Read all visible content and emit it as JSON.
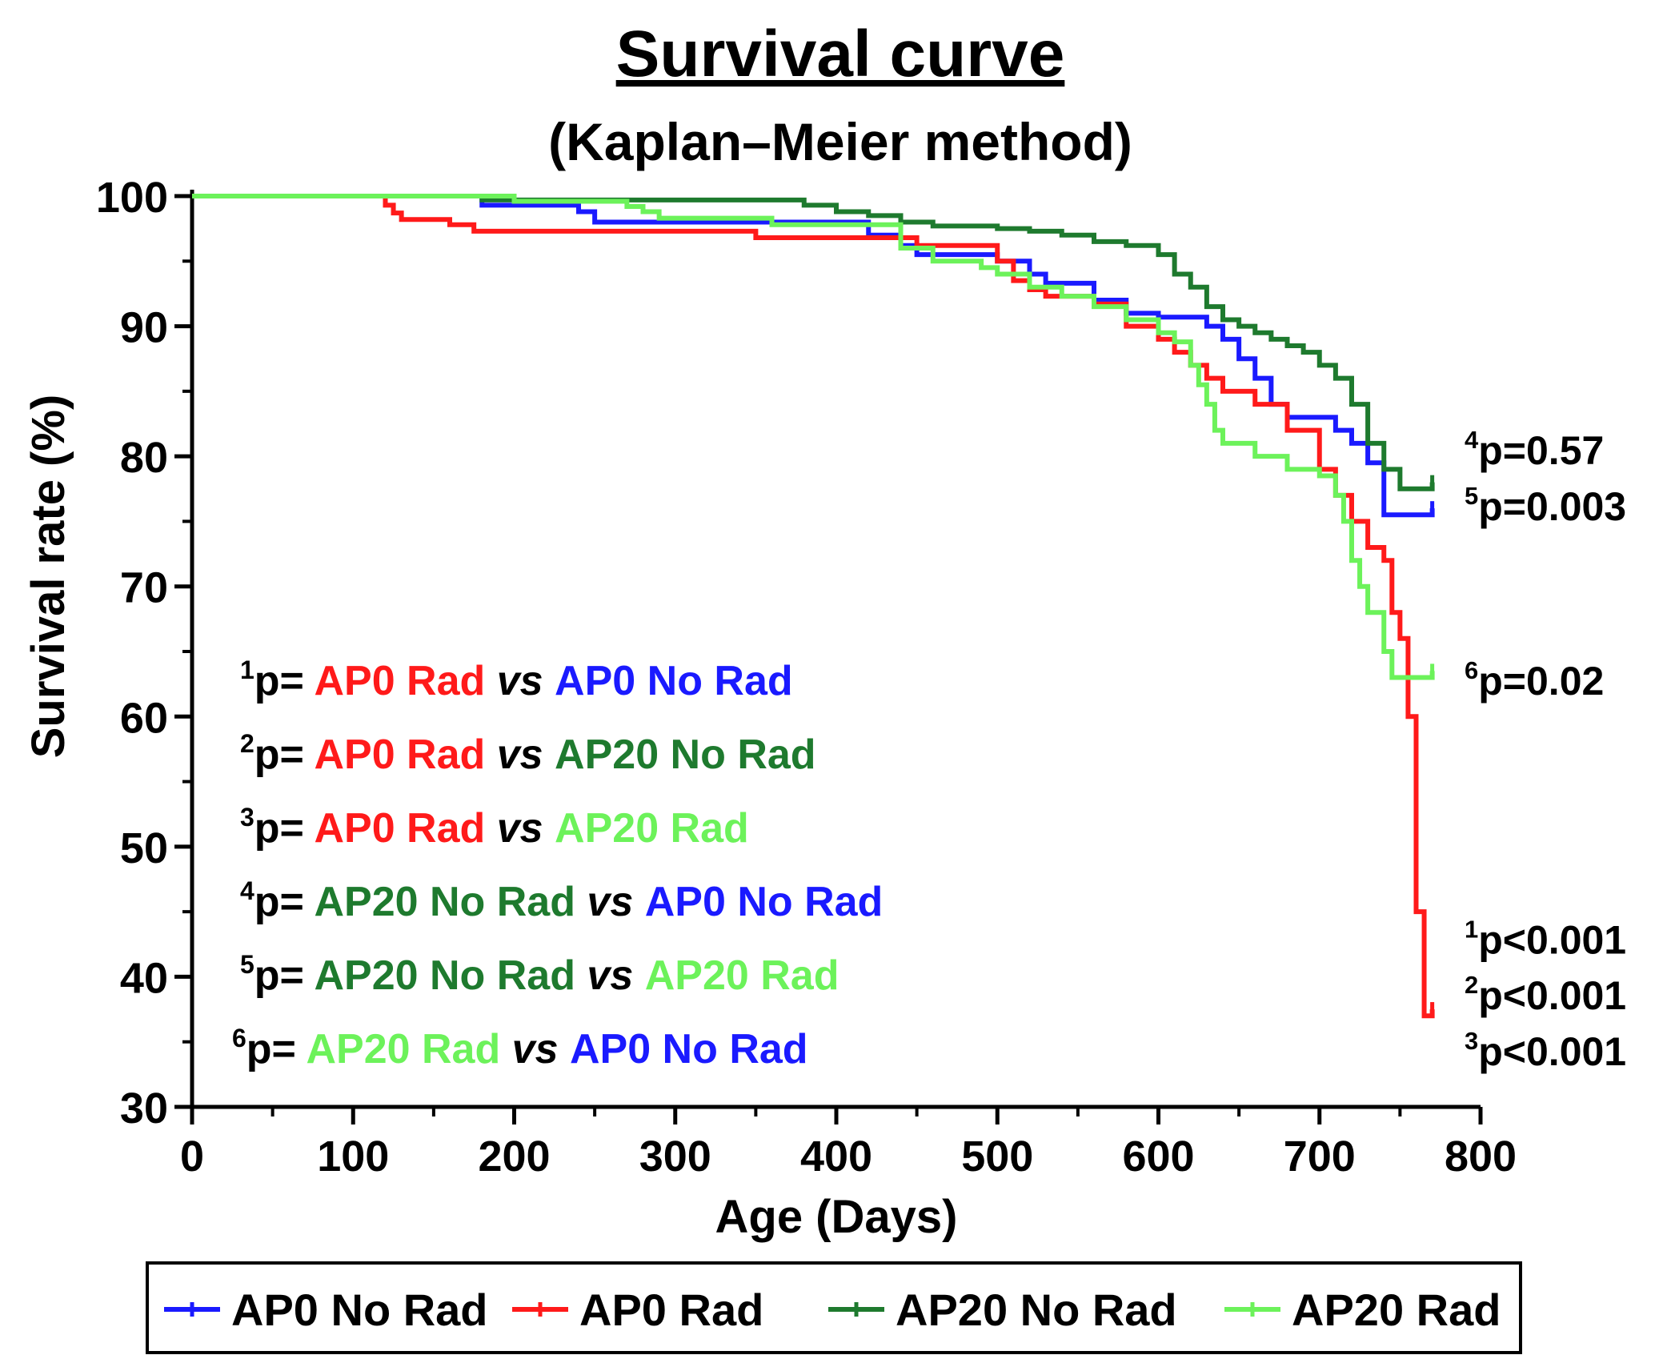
{
  "chart_data": {
    "type": "line",
    "title": "Survival curve",
    "subtitle": "(Kaplan–Meier method)",
    "xlabel": "Age (Days)",
    "ylabel": "Survival rate (%)",
    "xlim": [
      0,
      800
    ],
    "ylim": [
      30,
      100
    ],
    "xticks": [
      "0",
      "100",
      "200",
      "300",
      "400",
      "500",
      "600",
      "700",
      "800"
    ],
    "yticks": [
      "30",
      "40",
      "50",
      "60",
      "70",
      "80",
      "90",
      "100"
    ],
    "grid": false,
    "legend_position": "bottom",
    "series": [
      {
        "name": "AP0 No Rad",
        "color": "#1a1aff",
        "x": [
          0,
          180,
          240,
          250,
          420,
          440,
          450,
          490,
          500,
          520,
          530,
          560,
          580,
          600,
          620,
          630,
          640,
          650,
          660,
          670,
          680,
          710,
          720,
          730,
          740,
          770
        ],
        "y": [
          100,
          99.3,
          98.8,
          98,
          97,
          96.2,
          95.5,
          95.5,
          95,
          94,
          93.3,
          92,
          91,
          90.7,
          90.7,
          90,
          89,
          87.5,
          86,
          84,
          83,
          82,
          81,
          79.5,
          75.5,
          76
        ]
      },
      {
        "name": "AP0 Rad",
        "color": "#ff1a1a",
        "x": [
          0,
          120,
          125,
          130,
          160,
          175,
          350,
          450,
          500,
          510,
          520,
          530,
          560,
          580,
          600,
          610,
          620,
          630,
          640,
          660,
          680,
          700,
          710,
          720,
          730,
          740,
          745,
          750,
          755,
          760,
          765,
          770
        ],
        "y": [
          100,
          99.3,
          98.7,
          98.2,
          97.8,
          97.3,
          96.8,
          96.2,
          95,
          93.5,
          92.8,
          92.3,
          91.7,
          90,
          89,
          88,
          87,
          86,
          85,
          84,
          82,
          79,
          77,
          75,
          73,
          72,
          68,
          66,
          60,
          45,
          37,
          37.5
        ]
      },
      {
        "name": "AP20 No Rad",
        "color": "#1e7a2e",
        "x": [
          0,
          180,
          280,
          380,
          400,
          420,
          440,
          460,
          500,
          520,
          540,
          560,
          580,
          600,
          610,
          620,
          630,
          640,
          650,
          660,
          670,
          680,
          690,
          700,
          710,
          720,
          730,
          740,
          750,
          770
        ],
        "y": [
          100,
          99.7,
          99.7,
          99.3,
          98.8,
          98.5,
          98,
          97.7,
          97.5,
          97.3,
          97,
          96.5,
          96.2,
          95.5,
          94,
          93,
          91.5,
          90.5,
          90,
          89.5,
          89,
          88.5,
          88,
          87,
          86,
          84,
          81,
          79,
          77.5,
          78
        ]
      },
      {
        "name": "AP20 Rad",
        "color": "#6cf25a",
        "x": [
          0,
          200,
          270,
          280,
          290,
          360,
          440,
          460,
          490,
          500,
          520,
          540,
          560,
          580,
          600,
          610,
          620,
          625,
          630,
          635,
          640,
          660,
          680,
          700,
          710,
          715,
          720,
          725,
          730,
          740,
          745,
          750,
          770
        ],
        "y": [
          100,
          99.6,
          99.2,
          98.8,
          98.3,
          97.8,
          96,
          95,
          94.5,
          94,
          93,
          92.3,
          91.5,
          90.5,
          89.5,
          88.8,
          87,
          85.5,
          84,
          82,
          81,
          80,
          79,
          78.5,
          77,
          75,
          72,
          70,
          68,
          65,
          63,
          63,
          63.5
        ]
      }
    ],
    "annotations_left": [
      {
        "sup": "1",
        "parts": [
          {
            "text": "p= ",
            "color": "#000000"
          },
          {
            "text": "AP0 Rad",
            "color": "#ff1a1a"
          },
          {
            "text": " vs ",
            "color": "#000000",
            "italic": true
          },
          {
            "text": "AP0 No Rad",
            "color": "#1a1aff"
          }
        ]
      },
      {
        "sup": "2",
        "parts": [
          {
            "text": "p= ",
            "color": "#000000"
          },
          {
            "text": "AP0 Rad",
            "color": "#ff1a1a"
          },
          {
            "text": " vs ",
            "color": "#000000",
            "italic": true
          },
          {
            "text": "AP20 No Rad",
            "color": "#1e7a2e"
          }
        ]
      },
      {
        "sup": "3",
        "parts": [
          {
            "text": "p= ",
            "color": "#000000"
          },
          {
            "text": "AP0 Rad",
            "color": "#ff1a1a"
          },
          {
            "text": " vs ",
            "color": "#000000",
            "italic": true
          },
          {
            "text": "AP20 Rad",
            "color": "#6cf25a"
          }
        ]
      },
      {
        "sup": "4",
        "parts": [
          {
            "text": "p= ",
            "color": "#000000"
          },
          {
            "text": "AP20 No Rad",
            "color": "#1e7a2e"
          },
          {
            "text": " vs ",
            "color": "#000000",
            "italic": true
          },
          {
            "text": "AP0 No Rad",
            "color": "#1a1aff"
          }
        ]
      },
      {
        "sup": "5",
        "parts": [
          {
            "text": "p= ",
            "color": "#000000"
          },
          {
            "text": "AP20 No Rad",
            "color": "#1e7a2e"
          },
          {
            "text": " vs ",
            "color": "#000000",
            "italic": true
          },
          {
            "text": "AP20 Rad",
            "color": "#6cf25a"
          }
        ]
      },
      {
        "sup": "6",
        "parts": [
          {
            "text": "p= ",
            "color": "#000000"
          },
          {
            "text": "AP20 Rad",
            "color": "#6cf25a"
          },
          {
            "text": " vs ",
            "color": "#000000",
            "italic": true
          },
          {
            "text": "AP0 No Rad",
            "color": "#1a1aff"
          }
        ]
      }
    ],
    "annotations_right": [
      {
        "sup": "4",
        "text": "p=0.57",
        "at_y": 80.5
      },
      {
        "sup": "5",
        "text": "p=0.003",
        "at_y": 76.2
      },
      {
        "sup": "6",
        "text": "p=0.02",
        "at_y": 62.8
      },
      {
        "sup": "1",
        "text": "p<0.001",
        "at_y": 42.9
      },
      {
        "sup": "2",
        "text": "p<0.001",
        "at_y": 38.6
      },
      {
        "sup": "3",
        "text": "p<0.001",
        "at_y": 34.3
      }
    ]
  }
}
